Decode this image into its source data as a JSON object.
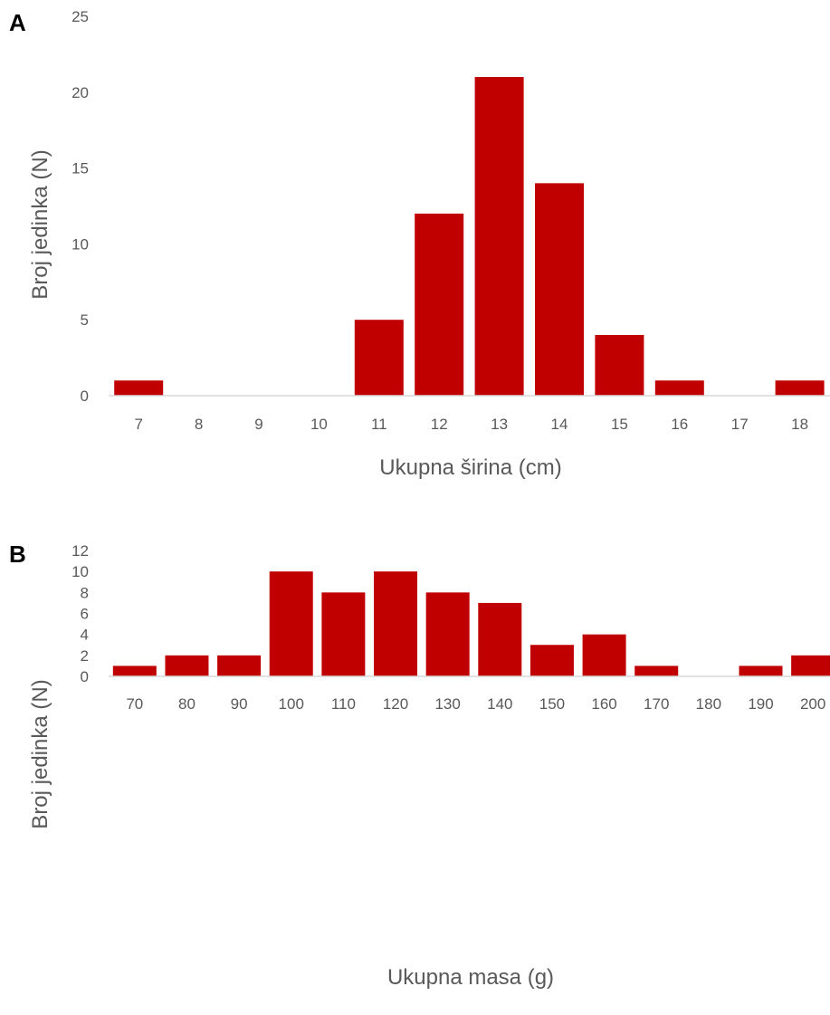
{
  "colors": {
    "bar": "#c00000",
    "axis_text": "#595959",
    "baseline": "#d9d9d9"
  },
  "chart_data": [
    {
      "panel_label": "A",
      "type": "bar",
      "categories": [
        "7",
        "8",
        "9",
        "10",
        "11",
        "12",
        "13",
        "14",
        "15",
        "16",
        "17",
        "18"
      ],
      "values": [
        1,
        0,
        0,
        0,
        5,
        12,
        21,
        14,
        4,
        1,
        0,
        1
      ],
      "xlabel": "Ukupna širina (cm)",
      "ylabel": "Broj jedinka (N)",
      "ylim": [
        0,
        25
      ],
      "yticks": [
        "0",
        "5",
        "10",
        "15",
        "20",
        "25"
      ],
      "grid": false,
      "legend": "none"
    },
    {
      "panel_label": "B",
      "type": "bar",
      "categories": [
        "70",
        "80",
        "90",
        "100",
        "110",
        "120",
        "130",
        "140",
        "150",
        "160",
        "170",
        "180",
        "190",
        "200"
      ],
      "values": [
        1,
        2,
        2,
        10,
        8,
        10,
        8,
        7,
        3,
        4,
        1,
        0,
        1,
        2
      ],
      "xlabel": "Ukupna masa (g)",
      "ylabel": "Broj jedinka (N)",
      "ylim": [
        0,
        12
      ],
      "yticks": [
        "0",
        "2",
        "4",
        "6",
        "8",
        "10",
        "12"
      ],
      "grid": false,
      "legend": "none"
    }
  ]
}
